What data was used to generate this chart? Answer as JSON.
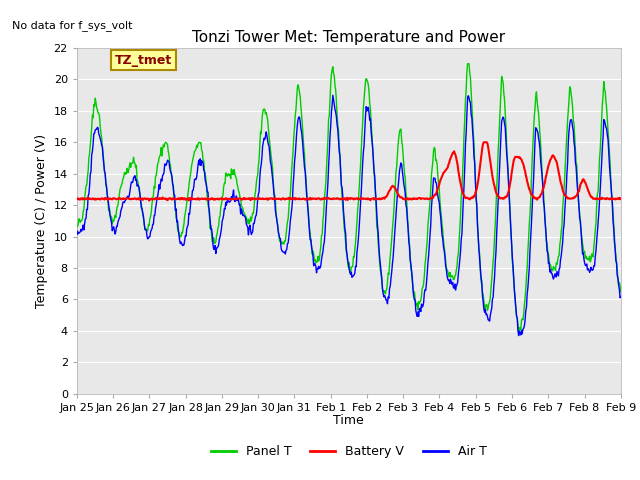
{
  "title": "Tonzi Tower Met: Temperature and Power",
  "ylabel": "Temperature (C) / Power (V)",
  "xlabel": "Time",
  "no_data_text": "No data for f_sys_volt",
  "legend_label_text": "TZ_tmet",
  "ylim": [
    0,
    22
  ],
  "yticks": [
    0,
    2,
    4,
    6,
    8,
    10,
    12,
    14,
    16,
    18,
    20,
    22
  ],
  "xtick_labels": [
    "Jan 25",
    "Jan 26",
    "Jan 27",
    "Jan 28",
    "Jan 29",
    "Jan 30",
    "Jan 31",
    "Feb 1",
    "Feb 2",
    "Feb 3",
    "Feb 4",
    "Feb 5",
    "Feb 6",
    "Feb 7",
    "Feb 8",
    "Feb 9"
  ],
  "panel_t_color": "#00CC00",
  "battery_v_color": "#FF0000",
  "air_t_color": "#0000FF",
  "fig_bg_color": "#FFFFFF",
  "plot_bg_color": "#E8E8E8",
  "grid_color": "#FFFFFF",
  "title_fontsize": 11,
  "axis_label_fontsize": 9,
  "tick_fontsize": 8,
  "legend_fontsize": 9,
  "no_data_fontsize": 8,
  "annotation_fontsize": 9
}
